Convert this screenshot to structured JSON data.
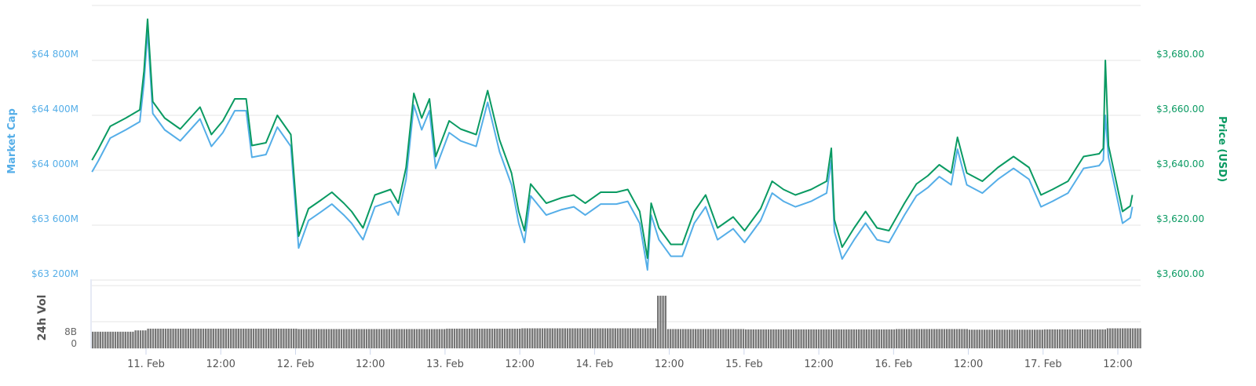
{
  "chart_data": [
    {
      "type": "line",
      "left_axis": {
        "title": "Market Cap",
        "ticks": [
          "$63 200M",
          "$63 600M",
          "$64 000M",
          "$64 400M",
          "$64 800M"
        ],
        "range_millions": [
          63200,
          65200
        ],
        "color": "#55aee8"
      },
      "right_axis": {
        "title": "Price (USD)",
        "ticks": [
          "$3,600.00",
          "$3,620.00",
          "$3,640.00",
          "$3,660.00",
          "$3,680.00"
        ],
        "range": [
          3600,
          3700
        ],
        "color": "#0a9a62"
      },
      "x_ticks": [
        "11. Feb",
        "12:00",
        "12. Feb",
        "12:00",
        "13. Feb",
        "12:00",
        "14. Feb",
        "12:00",
        "15. Feb",
        "12:00",
        "16. Feb",
        "12:00",
        "17. Feb",
        "12:00"
      ],
      "x": [
        "Feb 10 15:20",
        "Feb 10 16:20",
        "Feb 10 18:15",
        "Feb 10 20:45",
        "Feb 10 23:00",
        "Feb 10 23:40",
        "Feb 11 00:15",
        "Feb 11 01:05",
        "Feb 11 03:00",
        "Feb 11 05:30",
        "Feb 11 08:40",
        "Feb 11 10:30",
        "Feb 11 12:20",
        "Feb 11 14:15",
        "Feb 11 16:05",
        "Feb 11 17:00",
        "Feb 11 19:15",
        "Feb 11 21:05",
        "Feb 11 23:15",
        "Feb 12 00:30",
        "Feb 12 02:05",
        "Feb 12 04:00",
        "Feb 12 05:50",
        "Feb 12 07:45",
        "Feb 12 09:00",
        "Feb 12 10:50",
        "Feb 12 12:45",
        "Feb 12 15:15",
        "Feb 12 16:30",
        "Feb 12 17:45",
        "Feb 12 19:00",
        "Feb 12 20:15",
        "Feb 12 21:30",
        "Feb 12 22:30",
        "Feb 13 00:40",
        "Feb 13 02:30",
        "Feb 13 05:00",
        "Feb 13 06:50",
        "Feb 13 08:45",
        "Feb 13 10:40",
        "Feb 13 11:50",
        "Feb 13 12:45",
        "Feb 13 13:45",
        "Feb 13 16:15",
        "Feb 13 18:45",
        "Feb 13 20:40",
        "Feb 13 22:30",
        "Feb 14 01:00",
        "Feb 14 03:30",
        "Feb 14 05:20",
        "Feb 14 07:15",
        "Feb 14 08:30",
        "Feb 14 09:05",
        "Feb 14 10:20",
        "Feb 14 12:15",
        "Feb 14 14:05",
        "Feb 14 16:00",
        "Feb 14 17:50",
        "Feb 14 19:45",
        "Feb 14 22:15",
        "Feb 15 00:05",
        "Feb 15 02:40",
        "Feb 15 04:30",
        "Feb 15 06:20",
        "Feb 15 08:15",
        "Feb 15 10:45",
        "Feb 15 13:15",
        "Feb 15 14:00",
        "Feb 15 14:30",
        "Feb 15 15:45",
        "Feb 15 17:40",
        "Feb 15 19:30",
        "Feb 15 21:20",
        "Feb 15 23:15",
        "Feb 16 01:45",
        "Feb 16 03:40",
        "Feb 16 05:30",
        "Feb 16 07:20",
        "Feb 16 09:15",
        "Feb 16 10:15",
        "Feb 16 11:45",
        "Feb 16 14:15",
        "Feb 16 16:45",
        "Feb 16 19:15",
        "Feb 16 21:45",
        "Feb 16 23:40",
        "Feb 17 01:30",
        "Feb 17 04:00",
        "Feb 17 06:30",
        "Feb 17 09:00",
        "Feb 17 09:40",
        "Feb 17 10:00",
        "Feb 17 10:30",
        "Feb 17 12:45",
        "Feb 17 14:00",
        "Feb 17 14:20"
      ],
      "series": [
        {
          "axis": "right",
          "color": "#0a9a62",
          "values": [
            3643.7,
            3647.7,
            3656,
            3659,
            3662,
            3676,
            3695,
            3665,
            3659,
            3655,
            3663,
            3653,
            3658,
            3666,
            3666,
            3649,
            3650,
            3660,
            3653,
            3616,
            3626,
            3629,
            3632,
            3628,
            3625,
            3619,
            3631,
            3633,
            3628,
            3641,
            3668,
            3659,
            3666,
            3645,
            3658,
            3655,
            3653,
            3669,
            3651,
            3639,
            3625,
            3618,
            3635,
            3628,
            3630,
            3631,
            3628,
            3632,
            3632,
            3633,
            3625,
            3608,
            3628,
            3619,
            3613,
            3613,
            3625,
            3631,
            3619,
            3623,
            3618,
            3626,
            3636,
            3633,
            3631,
            3633,
            3636,
            3648,
            3622,
            3612,
            3619,
            3625,
            3619,
            3618,
            3628,
            3635,
            3638,
            3642,
            3639,
            3652,
            3639,
            3636,
            3641,
            3645,
            3641,
            3631,
            3633,
            3636,
            3645,
            3646,
            3648,
            3680,
            3649,
            3625,
            3627,
            3631
          ]
        },
        {
          "axis": "left",
          "color": "#55aee8",
          "values": [
            63988,
            64068,
            64234,
            64294,
            64354,
            64634,
            65014,
            64414,
            64294,
            64214,
            64374,
            64174,
            64274,
            64434,
            64434,
            64094,
            64114,
            64314,
            64174,
            63434,
            63634,
            63694,
            63754,
            63674,
            63614,
            63494,
            63734,
            63774,
            63674,
            63934,
            64474,
            64294,
            64434,
            64014,
            64274,
            64214,
            64174,
            64494,
            64134,
            63894,
            63614,
            63474,
            63814,
            63674,
            63714,
            63734,
            63674,
            63754,
            63754,
            63774,
            63614,
            63274,
            63674,
            63494,
            63374,
            63374,
            63614,
            63734,
            63494,
            63574,
            63474,
            63634,
            63834,
            63774,
            63734,
            63774,
            63834,
            64074,
            63554,
            63354,
            63494,
            63614,
            63494,
            63474,
            63674,
            63814,
            63874,
            63954,
            63894,
            64154,
            63894,
            63834,
            63934,
            64014,
            63934,
            63734,
            63774,
            63834,
            64014,
            64034,
            64074,
            64400,
            64094,
            63614,
            63654,
            63734
          ]
        }
      ],
      "grid": true
    },
    {
      "type": "bar",
      "axis_title": "24h Vol",
      "y_ticks": [
        "0",
        "8B"
      ],
      "color": "#777777",
      "x": [
        "Feb 10 15:20",
        "Feb 10 22:00",
        "Feb 11 00:00",
        "Feb 11 12:00",
        "Feb 12 00:00",
        "Feb 12 12:00",
        "Feb 13 00:00",
        "Feb 13 12:00",
        "Feb 14 00:00",
        "Feb 14 10:00",
        "Feb 14 11:30",
        "Feb 15 00:00",
        "Feb 16 00:00",
        "Feb 16 12:00",
        "Feb 17 00:00",
        "Feb 17 10:00",
        "Feb 17 14:20"
      ],
      "values_billions": [
        5.0,
        5.4,
        5.9,
        5.9,
        5.8,
        5.8,
        5.9,
        6.0,
        6.0,
        15.8,
        5.8,
        5.7,
        5.8,
        5.6,
        5.7,
        6.0,
        6.0
      ]
    }
  ]
}
